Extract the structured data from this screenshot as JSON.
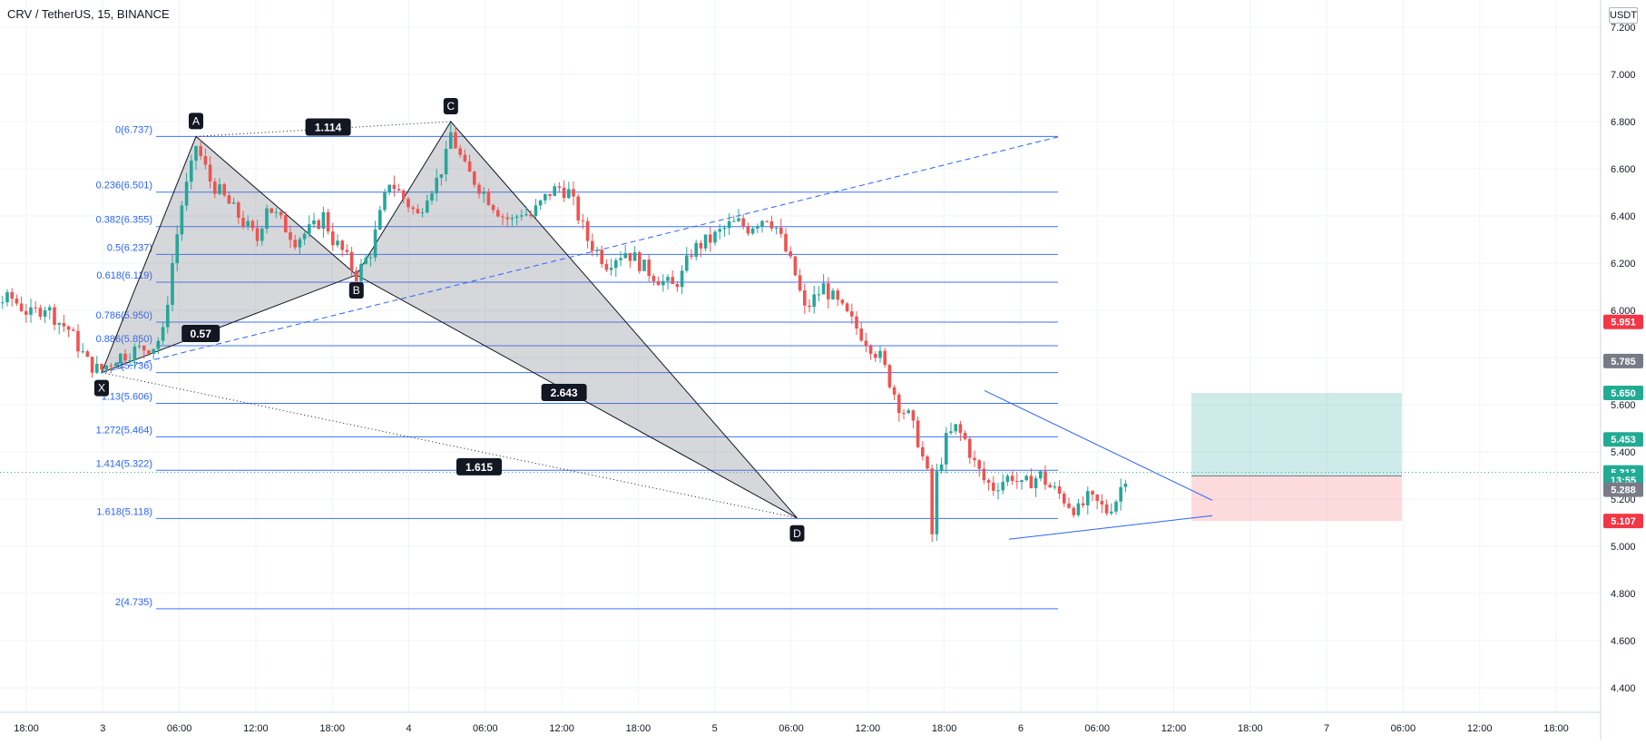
{
  "header": {
    "symbol": "CRV / TetherUS, 15, BINANCE"
  },
  "price_axis": {
    "unit": "USDT",
    "ticks": [
      "7.200",
      "7.000",
      "6.800",
      "6.600",
      "6.400",
      "6.200",
      "6.000",
      "5.800",
      "5.600",
      "5.400",
      "5.200",
      "5.000",
      "4.800",
      "4.600",
      "4.400"
    ],
    "tick_values": [
      7.2,
      7.0,
      6.8,
      6.6,
      6.4,
      6.2,
      6.0,
      5.8,
      5.6,
      5.4,
      5.2,
      5.0,
      4.8,
      4.6,
      4.4
    ]
  },
  "time_axis": {
    "labels": [
      "18:00",
      "3",
      "06:00",
      "12:00",
      "18:00",
      "4",
      "06:00",
      "12:00",
      "18:00",
      "5",
      "06:00",
      "12:00",
      "18:00",
      "6",
      "06:00",
      "12:00",
      "18:00",
      "7",
      "06:00",
      "12:00",
      "18:00"
    ]
  },
  "price_badges": [
    {
      "label": "5.951",
      "value": 5.951,
      "color": "#f23645"
    },
    {
      "label": "5.785",
      "value": 5.785,
      "color": "#787b86"
    },
    {
      "label": "5.650",
      "value": 5.65,
      "color": "#22ab94"
    },
    {
      "label": "5.453",
      "value": 5.453,
      "color": "#22ab94"
    },
    {
      "label": "5.313",
      "value": 5.313,
      "color": "#22ab94"
    },
    {
      "label": "13:55",
      "value": 5.281,
      "color": "#22ab94"
    },
    {
      "label": "5.288",
      "value": 5.24,
      "color": "#787b86"
    },
    {
      "label": "5.107",
      "value": 5.107,
      "color": "#f23645"
    }
  ],
  "fib_levels": [
    {
      "label": "0(6.737)",
      "value": 6.737
    },
    {
      "label": "0.236(6.501)",
      "value": 6.501
    },
    {
      "label": "0.382(6.355)",
      "value": 6.355
    },
    {
      "label": "0.5(6.237)",
      "value": 6.237
    },
    {
      "label": "0.618(6.119)",
      "value": 6.119
    },
    {
      "label": "0.786(5.950)",
      "value": 5.95
    },
    {
      "label": "0.886(5.850)",
      "value": 5.85
    },
    {
      "label": "1(5.736)",
      "value": 5.736
    },
    {
      "label": "1.13(5.606)",
      "value": 5.606
    },
    {
      "label": "1.272(5.464)",
      "value": 5.464
    },
    {
      "label": "1.414(5.322)",
      "value": 5.322
    },
    {
      "label": "1.618(5.118)",
      "value": 5.118
    },
    {
      "label": "2(4.735)",
      "value": 4.735
    }
  ],
  "pattern": {
    "points": [
      {
        "label": "X",
        "t": 7.5,
        "price": 5.736
      },
      {
        "label": "A",
        "t": 17.5,
        "price": 6.737
      },
      {
        "label": "B",
        "t": 34.5,
        "price": 6.15
      },
      {
        "label": "C",
        "t": 44.5,
        "price": 6.8
      },
      {
        "label": "D",
        "t": 81.2,
        "price": 5.12
      }
    ],
    "ratios": [
      {
        "label": "0.57",
        "t": 18,
        "price": 5.9
      },
      {
        "label": "1.114",
        "t": 31.5,
        "price": 6.775
      },
      {
        "label": "2.643",
        "t": 56.5,
        "price": 5.65
      },
      {
        "label": "1.615",
        "t": 47.5,
        "price": 5.335
      }
    ]
  },
  "position": {
    "entry": 5.298,
    "target": 5.65,
    "stop": 5.107
  },
  "last_price": 5.313,
  "colors": {
    "up": "#26a69a",
    "down": "#ef5350",
    "fib": "#2962ff",
    "grid": "#f0f3fa"
  },
  "chart_data": {
    "type": "candlestick",
    "title": "CRV / TetherUS, 15, BINANCE",
    "ylim": [
      4.3,
      7.3
    ],
    "xlabel": "",
    "ylabel": "",
    "y_scale": "linear",
    "grid": true,
    "series": [
      {
        "name": "CRV / TetherUS",
        "close_path": [
          [
            -12.5,
            6.05
          ],
          [
            -11.5,
            6.18
          ],
          [
            -10,
            6.02
          ],
          [
            -8,
            6.05
          ],
          [
            -6,
            5.95
          ],
          [
            -4,
            6.03
          ],
          [
            -2,
            6.05
          ],
          [
            0,
            5.98
          ],
          [
            1.5,
            6.02
          ],
          [
            3,
            5.95
          ],
          [
            4,
            5.92
          ],
          [
            5,
            5.85
          ],
          [
            6,
            5.78
          ],
          [
            7,
            5.75
          ],
          [
            7.5,
            5.75
          ],
          [
            9,
            5.8
          ],
          [
            11,
            5.83
          ],
          [
            13,
            5.85
          ],
          [
            14,
            5.9
          ],
          [
            15,
            6.2
          ],
          [
            16,
            6.45
          ],
          [
            17,
            6.6
          ],
          [
            17.5,
            6.7
          ],
          [
            19,
            6.55
          ],
          [
            20,
            6.5
          ],
          [
            21,
            6.45
          ],
          [
            22,
            6.4
          ],
          [
            23,
            6.35
          ],
          [
            24,
            6.3
          ],
          [
            25,
            6.45
          ],
          [
            26,
            6.4
          ],
          [
            27,
            6.35
          ],
          [
            28,
            6.3
          ],
          [
            30,
            6.35
          ],
          [
            31,
            6.4
          ],
          [
            32,
            6.3
          ],
          [
            33,
            6.25
          ],
          [
            34,
            6.18
          ],
          [
            34.5,
            6.15
          ],
          [
            35,
            6.18
          ],
          [
            36,
            6.25
          ],
          [
            37,
            6.4
          ],
          [
            38,
            6.55
          ],
          [
            39,
            6.5
          ],
          [
            40,
            6.45
          ],
          [
            41,
            6.4
          ],
          [
            42,
            6.5
          ],
          [
            43,
            6.55
          ],
          [
            44,
            6.65
          ],
          [
            44.5,
            6.75
          ],
          [
            45,
            6.7
          ],
          [
            46,
            6.6
          ],
          [
            47,
            6.55
          ],
          [
            48,
            6.5
          ],
          [
            49,
            6.45
          ],
          [
            50,
            6.4
          ],
          [
            51,
            6.38
          ],
          [
            52,
            6.42
          ],
          [
            53,
            6.4
          ],
          [
            54,
            6.45
          ],
          [
            55,
            6.5
          ],
          [
            56,
            6.52
          ],
          [
            57,
            6.5
          ],
          [
            58,
            6.4
          ],
          [
            59,
            6.3
          ],
          [
            60,
            6.25
          ],
          [
            61,
            6.2
          ],
          [
            62,
            6.23
          ],
          [
            63,
            6.25
          ],
          [
            64,
            6.22
          ],
          [
            65,
            6.18
          ],
          [
            66,
            6.15
          ],
          [
            67,
            6.12
          ],
          [
            68,
            6.1
          ],
          [
            69,
            6.15
          ],
          [
            70,
            6.25
          ],
          [
            71,
            6.28
          ],
          [
            72,
            6.3
          ],
          [
            73,
            6.33
          ],
          [
            74,
            6.36
          ],
          [
            75,
            6.37
          ],
          [
            76,
            6.35
          ],
          [
            77,
            6.38
          ],
          [
            78,
            6.4
          ],
          [
            79,
            6.35
          ],
          [
            80,
            6.25
          ],
          [
            81,
            6.15
          ],
          [
            82,
            6.0
          ],
          [
            83,
            6.05
          ],
          [
            84,
            6.1
          ],
          [
            85,
            6.05
          ],
          [
            86,
            6.0
          ],
          [
            87,
            5.95
          ],
          [
            88,
            5.9
          ],
          [
            89,
            5.85
          ],
          [
            90,
            5.8
          ],
          [
            91,
            5.7
          ],
          [
            92,
            5.6
          ],
          [
            93,
            5.55
          ],
          [
            94,
            5.45
          ],
          [
            95,
            5.3
          ],
          [
            95.5,
            5.05
          ],
          [
            96,
            5.3
          ],
          [
            97,
            5.45
          ],
          [
            98,
            5.5
          ],
          [
            99,
            5.45
          ],
          [
            100,
            5.35
          ],
          [
            101,
            5.28
          ],
          [
            102,
            5.25
          ],
          [
            103,
            5.28
          ],
          [
            104,
            5.3
          ],
          [
            105,
            5.25
          ],
          [
            106,
            5.28
          ],
          [
            107,
            5.3
          ],
          [
            108,
            5.25
          ],
          [
            109,
            5.22
          ],
          [
            110,
            5.18
          ],
          [
            111,
            5.15
          ],
          [
            112,
            5.2
          ],
          [
            113,
            5.18
          ],
          [
            114,
            5.15
          ],
          [
            115,
            5.2
          ],
          [
            116,
            5.3
          ]
        ]
      }
    ]
  }
}
